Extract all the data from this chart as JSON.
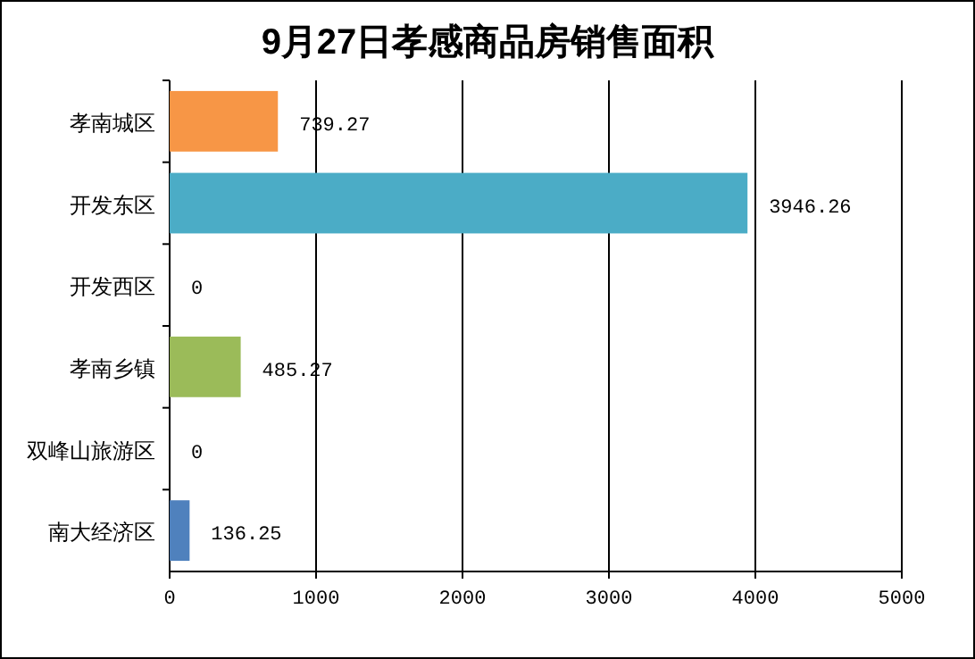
{
  "chart_data": {
    "type": "bar",
    "orientation": "horizontal",
    "title": "9月27日孝感商品房销售面积",
    "categories": [
      "孝南城区",
      "开发东区",
      "开发西区",
      "孝南乡镇",
      "双峰山旅游区",
      "南大经济区"
    ],
    "values": [
      739.27,
      3946.26,
      0,
      485.27,
      0,
      136.25
    ],
    "colors": [
      "#f79646",
      "#4bacc6",
      "#4f81bd",
      "#9bbb59",
      "#4f81bd",
      "#4f81bd"
    ],
    "xlim": [
      0,
      5000
    ],
    "xticks": [
      0,
      1000,
      2000,
      3000,
      4000,
      5000
    ],
    "grid": "x",
    "data_labels": true
  }
}
